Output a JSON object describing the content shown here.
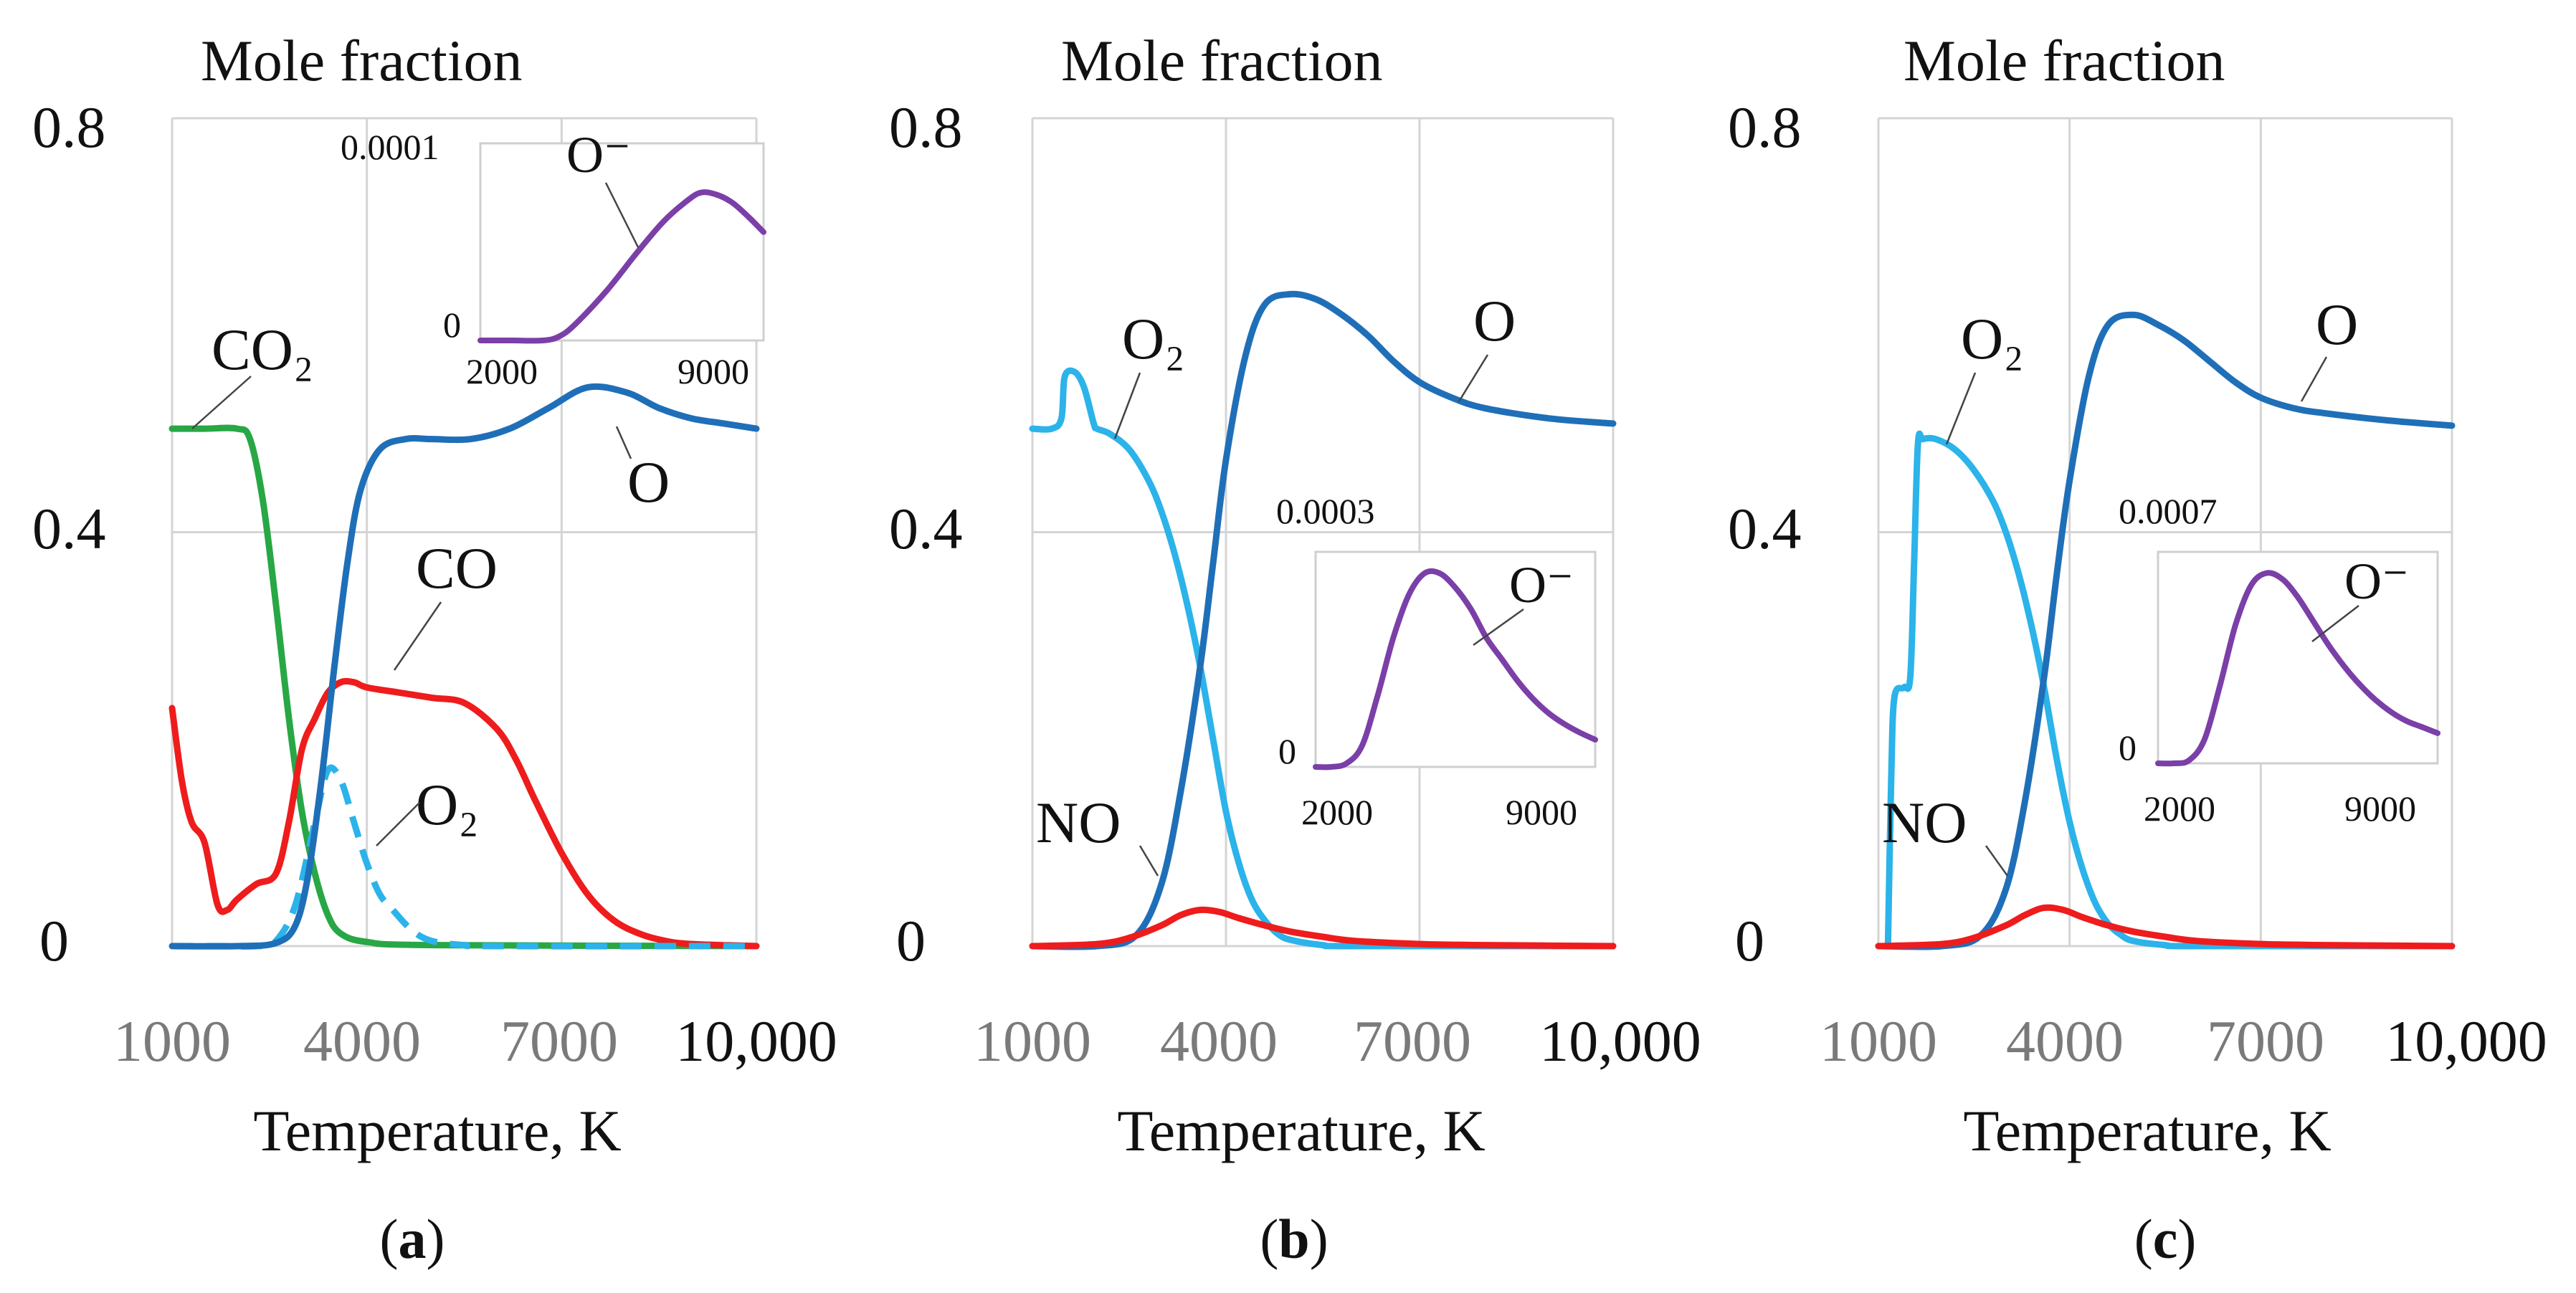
{
  "colors": {
    "O": "#1f6fb8",
    "O2": "#2bb3ea",
    "CO2": "#28a745",
    "CO": "#ee1c1c",
    "NO": "#ee1c1c",
    "O-": "#7b3fa8",
    "grid": "#d4d4d4"
  },
  "chart_data": [
    {
      "id": "a",
      "type": "line",
      "panel_label": "a",
      "title": "Mole fraction",
      "xlabel": "Temperature, K",
      "xlim": [
        1000,
        10000
      ],
      "ylim": [
        0,
        0.8
      ],
      "xticks": [
        "1000",
        "4000",
        "7000",
        "10,000"
      ],
      "yticks": [
        "0",
        "0.4",
        "0.8"
      ],
      "grid": true,
      "series": [
        {
          "name": "CO₂",
          "color": "#28a745",
          "style": "solid",
          "x": [
            1000,
            1500,
            2000,
            2200,
            2400,
            2600,
            2800,
            3000,
            3200,
            3400,
            3600,
            4000,
            5000,
            10000
          ],
          "y": [
            0.5,
            0.5,
            0.5,
            0.49,
            0.43,
            0.33,
            0.22,
            0.13,
            0.07,
            0.03,
            0.012,
            0.004,
            0.001,
            0
          ]
        },
        {
          "name": "CO",
          "color": "#ee1c1c",
          "style": "solid",
          "x": [
            1000,
            1150,
            1300,
            1500,
            1700,
            1850,
            2000,
            2300,
            2600,
            2800,
            3000,
            3200,
            3400,
            3600,
            3800,
            4000,
            4500,
            5000,
            5500,
            6000,
            6300,
            6600,
            7000,
            7400,
            7800,
            8200,
            8600,
            9000,
            10000
          ],
          "y": [
            0.23,
            0.16,
            0.12,
            0.1,
            0.04,
            0.035,
            0.045,
            0.06,
            0.07,
            0.12,
            0.19,
            0.22,
            0.245,
            0.255,
            0.255,
            0.25,
            0.245,
            0.24,
            0.235,
            0.21,
            0.18,
            0.14,
            0.09,
            0.05,
            0.025,
            0.012,
            0.005,
            0.002,
            0
          ]
        },
        {
          "name": "O₂",
          "color": "#2bb3ea",
          "style": "dashed",
          "x": [
            1000,
            1800,
            2300,
            2600,
            2900,
            3200,
            3400,
            3600,
            3800,
            4000,
            4200,
            4400,
            4700,
            5000,
            5500,
            6000,
            10000
          ],
          "y": [
            0,
            0,
            0,
            0.005,
            0.04,
            0.12,
            0.17,
            0.16,
            0.12,
            0.08,
            0.05,
            0.035,
            0.015,
            0.005,
            0.001,
            0,
            0
          ]
        },
        {
          "name": "O",
          "color": "#1f6fb8",
          "style": "solid",
          "x": [
            1000,
            2000,
            2600,
            2900,
            3100,
            3300,
            3500,
            3700,
            3900,
            4200,
            4600,
            5000,
            5600,
            6200,
            6800,
            7400,
            8000,
            8500,
            9000,
            9500,
            10000
          ],
          "y": [
            0,
            0,
            0.003,
            0.02,
            0.07,
            0.16,
            0.27,
            0.37,
            0.44,
            0.48,
            0.49,
            0.49,
            0.49,
            0.5,
            0.52,
            0.54,
            0.535,
            0.52,
            0.51,
            0.505,
            0.5
          ]
        }
      ],
      "annotations": [
        "CO₂",
        "CO",
        "O₂",
        "O"
      ],
      "inset": {
        "ylim": [
          0,
          0.0001
        ],
        "xlim": [
          1000,
          10000
        ],
        "yticks": [
          "0",
          "0.0001"
        ],
        "xticks": [
          "2000",
          "9000"
        ],
        "series": [
          {
            "name": "O⁻",
            "color": "#7b3fa8",
            "x": [
              1000,
              2000,
              3000,
              3500,
              4000,
              5000,
              6000,
              6800,
              7500,
              8000,
              8500,
              9000,
              9500,
              10000
            ],
            "y": [
              0,
              0,
              0,
              2e-06,
              8e-06,
              2.5e-05,
              4.5e-05,
              6e-05,
              7e-05,
              7.5e-05,
              7.4e-05,
              7e-05,
              6.3e-05,
              5.5e-05
            ]
          }
        ],
        "annotation": "O⁻"
      }
    },
    {
      "id": "b",
      "type": "line",
      "panel_label": "b",
      "title": "Mole fraction",
      "xlabel": "Temperature, K",
      "xlim": [
        1000,
        10000
      ],
      "ylim": [
        0,
        0.8
      ],
      "xticks": [
        "1000",
        "4000",
        "7000",
        "10,000"
      ],
      "yticks": [
        "0",
        "0.4",
        "0.8"
      ],
      "grid": true,
      "series": [
        {
          "name": "O₂",
          "color": "#2bb3ea",
          "style": "solid",
          "x": [
            1000,
            1300,
            1450,
            1500,
            1650,
            1800,
            1950,
            2000,
            2200,
            2500,
            2800,
            3000,
            3200,
            3400,
            3600,
            3800,
            4000,
            4200,
            4400,
            4600,
            4800,
            5000,
            5500,
            6000,
            10000
          ],
          "y": [
            0.5,
            0.5,
            0.51,
            0.55,
            0.555,
            0.54,
            0.505,
            0.5,
            0.495,
            0.48,
            0.45,
            0.42,
            0.38,
            0.33,
            0.27,
            0.2,
            0.13,
            0.08,
            0.045,
            0.025,
            0.012,
            0.006,
            0.001,
            0,
            0
          ]
        },
        {
          "name": "O",
          "color": "#1f6fb8",
          "style": "solid",
          "x": [
            1000,
            2000,
            2600,
            3000,
            3300,
            3600,
            3800,
            4000,
            4300,
            4600,
            5000,
            5400,
            5800,
            6200,
            6600,
            7000,
            7500,
            8000,
            9000,
            10000
          ],
          "y": [
            0,
            0,
            0.01,
            0.06,
            0.15,
            0.27,
            0.37,
            0.47,
            0.57,
            0.62,
            0.63,
            0.625,
            0.61,
            0.59,
            0.565,
            0.545,
            0.53,
            0.52,
            0.51,
            0.505
          ]
        },
        {
          "name": "NO",
          "color": "#ee1c1c",
          "style": "solid",
          "x": [
            1000,
            2000,
            2500,
            3000,
            3300,
            3600,
            3900,
            4200,
            4600,
            5000,
            5500,
            6000,
            7000,
            8000,
            10000
          ],
          "y": [
            0,
            0.002,
            0.008,
            0.02,
            0.03,
            0.035,
            0.033,
            0.027,
            0.02,
            0.014,
            0.009,
            0.005,
            0.002,
            0.001,
            0
          ]
        }
      ],
      "annotations": [
        "O₂",
        "O",
        "NO"
      ],
      "inset": {
        "ylim": [
          0,
          0.0003
        ],
        "xlim": [
          1000,
          10000
        ],
        "yticks": [
          "0",
          "0.0003"
        ],
        "xticks": [
          "2000",
          "9000"
        ],
        "series": [
          {
            "name": "O⁻",
            "color": "#7b3fa8",
            "x": [
              1000,
              1500,
              2000,
              2500,
              3000,
              3500,
              4000,
              4500,
              5000,
              5500,
              6000,
              6500,
              7000,
              7500,
              8000,
              8500,
              9000,
              9500,
              10000
            ],
            "y": [
              0,
              0,
              5e-06,
              3e-05,
              0.0001,
              0.00018,
              0.00024,
              0.00027,
              0.00027,
              0.00025,
              0.00022,
              0.00018,
              0.00015,
              0.00012,
              9.5e-05,
              7.5e-05,
              6e-05,
              4.8e-05,
              3.8e-05
            ]
          }
        ],
        "annotation": "O⁻"
      }
    },
    {
      "id": "c",
      "type": "line",
      "panel_label": "c",
      "title": "Mole fraction",
      "xlabel": "Temperature, K",
      "xlim": [
        1000,
        10000
      ],
      "ylim": [
        0,
        0.8
      ],
      "xticks": [
        "1000",
        "4000",
        "7000",
        "10,000"
      ],
      "yticks": [
        "0",
        "0.4",
        "0.8"
      ],
      "grid": true,
      "series": [
        {
          "name": "O₂",
          "color": "#2bb3ea",
          "style": "solid",
          "x": [
            1150,
            1200,
            1250,
            1400,
            1500,
            1560,
            1620,
            1700,
            1900,
            2200,
            2500,
            2800,
            3000,
            3200,
            3400,
            3600,
            3800,
            4000,
            4200,
            4400,
            4600,
            4800,
            5000,
            5500,
            6000,
            10000
          ],
          "y": [
            0,
            0.16,
            0.24,
            0.25,
            0.26,
            0.37,
            0.485,
            0.49,
            0.49,
            0.48,
            0.46,
            0.43,
            0.4,
            0.36,
            0.31,
            0.25,
            0.18,
            0.12,
            0.075,
            0.042,
            0.022,
            0.011,
            0.005,
            0.001,
            0,
            0
          ]
        },
        {
          "name": "O",
          "color": "#1f6fb8",
          "style": "solid",
          "x": [
            1000,
            2000,
            2600,
            3000,
            3300,
            3600,
            3800,
            4000,
            4300,
            4600,
            5000,
            5400,
            5800,
            6200,
            6600,
            7000,
            7500,
            8000,
            9000,
            10000
          ],
          "y": [
            0,
            0,
            0.01,
            0.055,
            0.14,
            0.26,
            0.36,
            0.45,
            0.55,
            0.6,
            0.61,
            0.6,
            0.585,
            0.565,
            0.545,
            0.53,
            0.52,
            0.515,
            0.508,
            0.503
          ]
        },
        {
          "name": "NO",
          "color": "#ee1c1c",
          "style": "solid",
          "x": [
            1000,
            2000,
            2500,
            3000,
            3300,
            3600,
            3900,
            4200,
            4600,
            5000,
            5500,
            6000,
            7000,
            8000,
            10000
          ],
          "y": [
            0,
            0.002,
            0.008,
            0.02,
            0.03,
            0.037,
            0.035,
            0.028,
            0.02,
            0.014,
            0.009,
            0.005,
            0.002,
            0.001,
            0
          ]
        }
      ],
      "annotations": [
        "O₂",
        "O",
        "NO"
      ],
      "inset": {
        "ylim": [
          0,
          0.0007
        ],
        "xlim": [
          1000,
          10000
        ],
        "yticks": [
          "0",
          "0.0007"
        ],
        "xticks": [
          "2000",
          "9000"
        ],
        "series": [
          {
            "name": "O⁻",
            "color": "#7b3fa8",
            "x": [
              1000,
              1500,
              2000,
              2500,
              3000,
              3500,
              4000,
              4500,
              5000,
              5500,
              6000,
              6500,
              7000,
              7500,
              8000,
              8500,
              9000,
              9500,
              10000
            ],
            "y": [
              0,
              0,
              1e-05,
              8e-05,
              0.00026,
              0.00046,
              0.00059,
              0.00063,
              0.00061,
              0.00055,
              0.00047,
              0.00039,
              0.00032,
              0.00026,
              0.00021,
              0.00017,
              0.00014,
              0.00012,
              0.0001
            ]
          }
        ],
        "annotation": "O⁻"
      }
    }
  ]
}
